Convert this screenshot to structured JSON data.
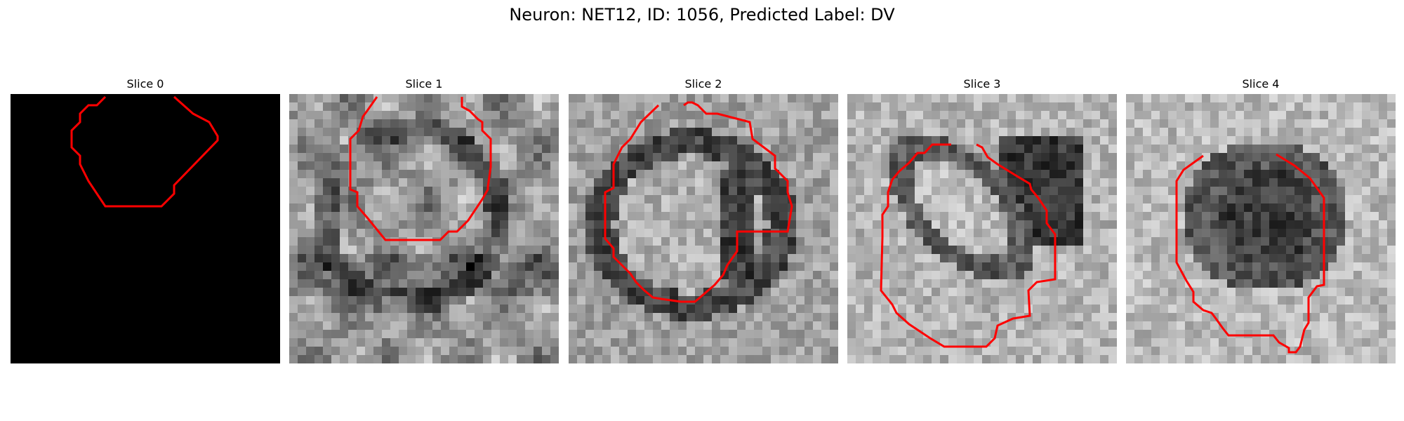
{
  "figure": {
    "title": "Neuron: NET12, ID: 1056, Predicted Label: DV",
    "contour_color": "#ff0000",
    "colormap": "gray",
    "slices": [
      {
        "label": "Slice 0",
        "type": "blank-black"
      },
      {
        "label": "Slice 1",
        "type": "grayscale-texture"
      },
      {
        "label": "Slice 2",
        "type": "grayscale-texture"
      },
      {
        "label": "Slice 3",
        "type": "grayscale-texture"
      },
      {
        "label": "Slice 4",
        "type": "grayscale-texture"
      }
    ]
  }
}
